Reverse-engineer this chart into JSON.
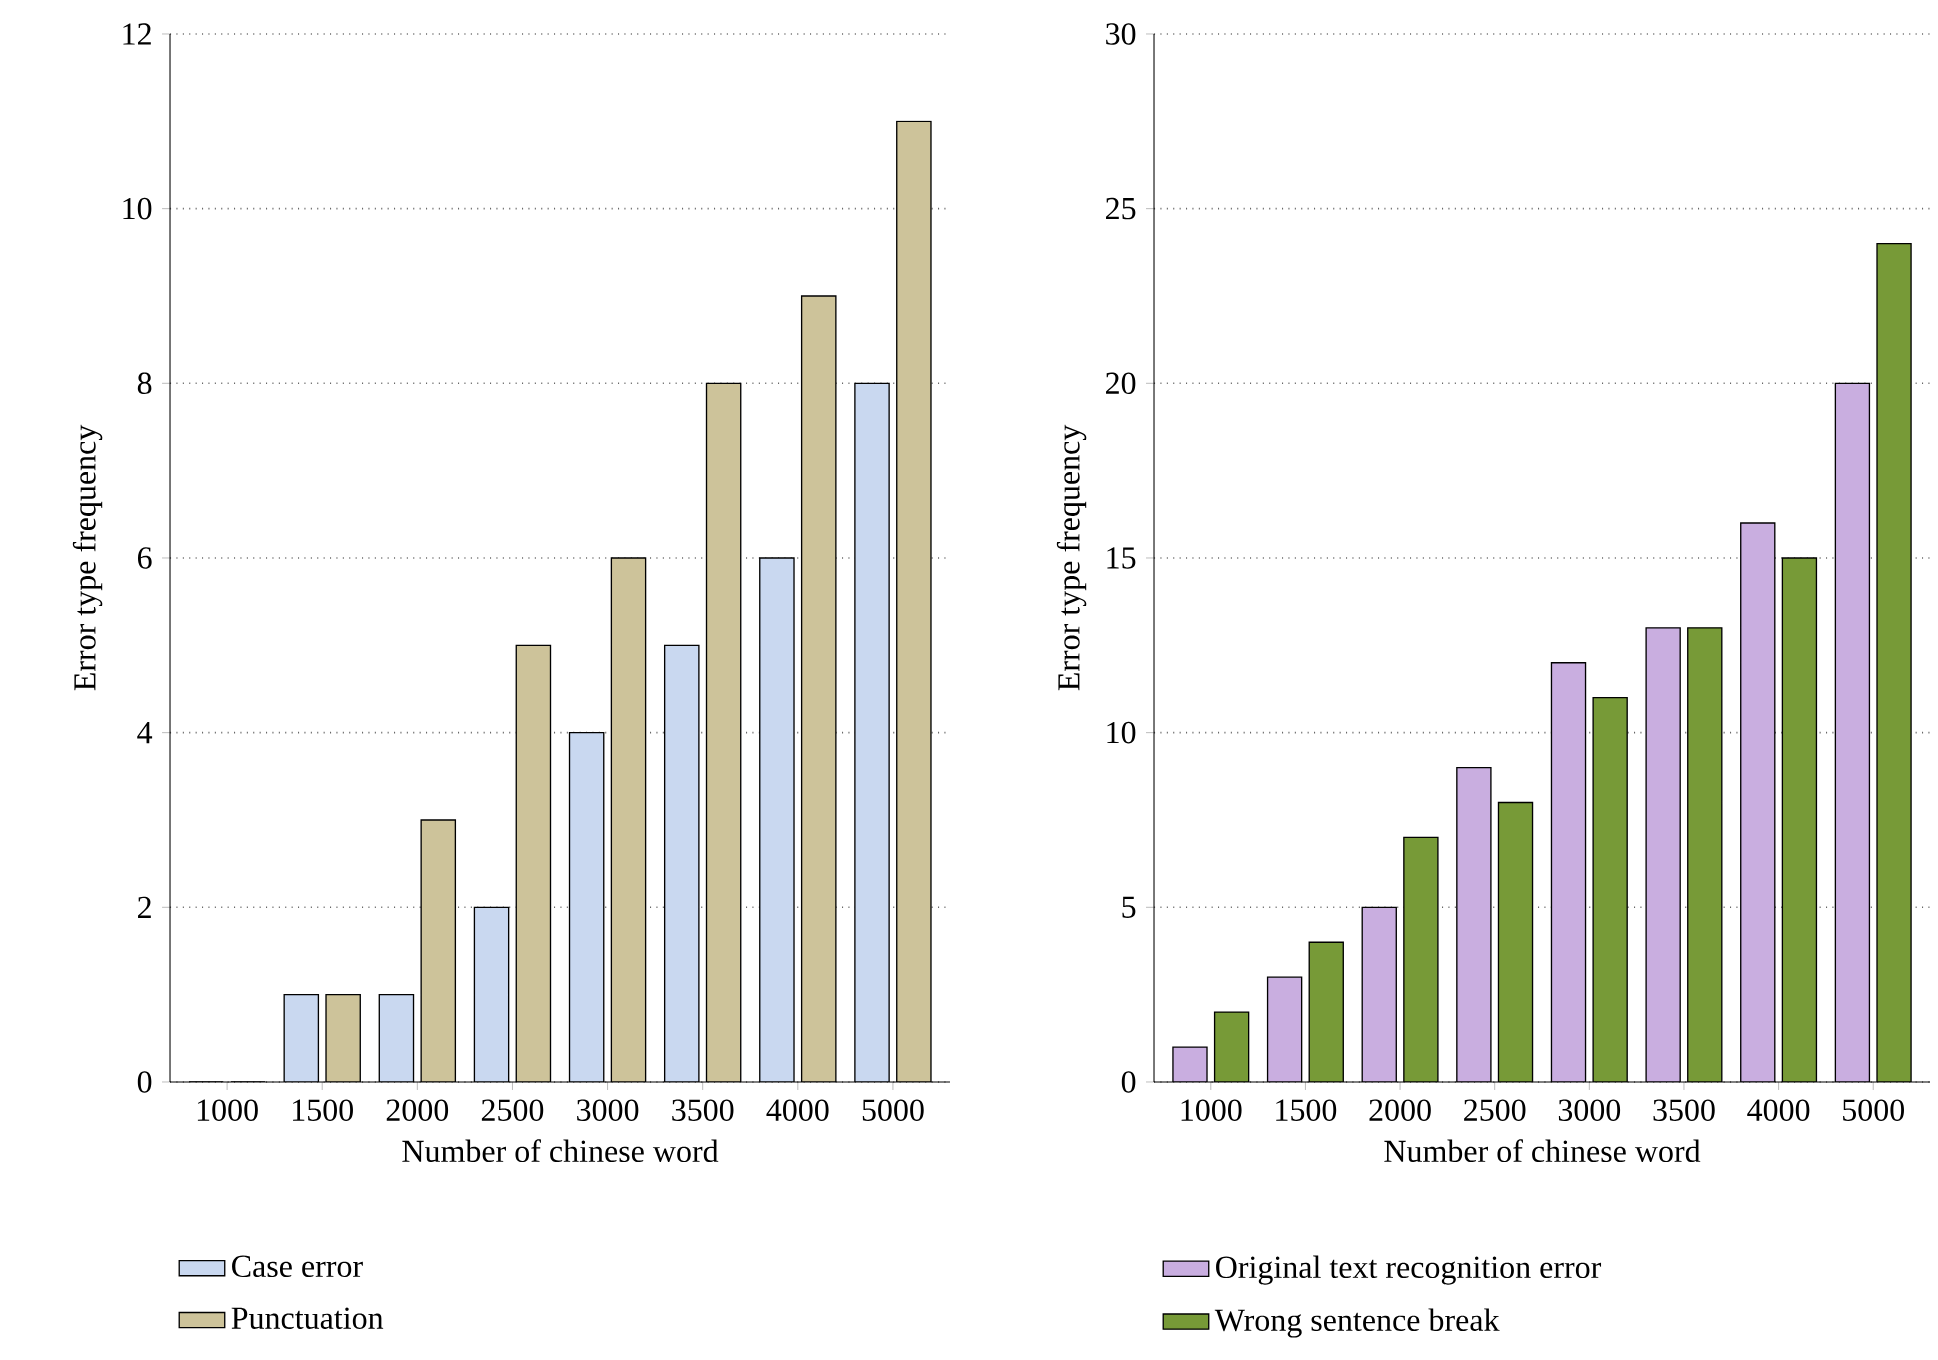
{
  "chart_data": [
    {
      "type": "bar",
      "xlabel": "Number of chinese word",
      "ylabel": "Error type frequency",
      "categories": [
        "1000",
        "1500",
        "2000",
        "2500",
        "3000",
        "3500",
        "4000",
        "5000"
      ],
      "series": [
        {
          "name": "Case error",
          "color": "#c9d8f0",
          "values": [
            0,
            1,
            1,
            2,
            4,
            5,
            6,
            8
          ]
        },
        {
          "name": "Punctuation",
          "color": "#cdc39a",
          "values": [
            0,
            1,
            3,
            5,
            6,
            8,
            9,
            11
          ]
        }
      ],
      "ylim": [
        0,
        12
      ],
      "yticks": [
        0,
        2,
        4,
        6,
        8,
        10,
        12
      ],
      "grid": "y",
      "legend": "bottom"
    },
    {
      "type": "bar",
      "xlabel": "Number of chinese word",
      "ylabel": "Error type frequency",
      "categories": [
        "1000",
        "1500",
        "2000",
        "2500",
        "3000",
        "3500",
        "4000",
        "5000"
      ],
      "series": [
        {
          "name": "Original text recognition error",
          "color": "#c9aee0",
          "values": [
            1,
            3,
            5,
            9,
            12,
            13,
            16,
            20
          ]
        },
        {
          "name": "Wrong sentence break",
          "color": "#779a37",
          "values": [
            2,
            4,
            7,
            8,
            11,
            13,
            15,
            24
          ]
        }
      ],
      "ylim": [
        0,
        30
      ],
      "yticks": [
        0,
        5,
        10,
        15,
        20,
        25,
        30
      ],
      "grid": "y",
      "legend": "bottom"
    }
  ]
}
